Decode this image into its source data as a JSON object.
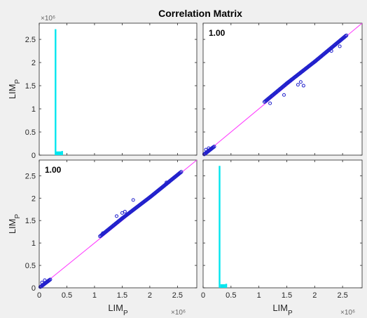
{
  "chart_data": {
    "type": "scatter",
    "title": "Correlation Matrix",
    "variable": "LIM",
    "variable_subscript": "P",
    "axis_range": [
      0,
      2.85
    ],
    "axis_exponent": "×10⁶",
    "ticks": [
      0,
      0.5,
      1,
      1.5,
      2,
      2.5
    ],
    "tick_labels": [
      "0",
      "0.5",
      "1",
      "1.5",
      "2",
      "2.5"
    ],
    "correlation_labels": [
      "1.00",
      "1.00"
    ],
    "histogram": {
      "bars": [
        {
          "x0": 0.28,
          "x1": 0.31,
          "count": 2.72
        },
        {
          "x0": 0.31,
          "x1": 0.4,
          "count": 0.08
        },
        {
          "x0": 0.4,
          "x1": 0.43,
          "count": 0.09
        }
      ]
    },
    "scatter_upper": {
      "trend": [
        [
          0.02,
          0.02
        ],
        [
          0.18,
          0.17
        ],
        [
          1.1,
          1.15
        ],
        [
          1.5,
          1.55
        ],
        [
          2.0,
          2.02
        ],
        [
          2.55,
          2.57
        ]
      ],
      "outliers": [
        [
          0.1,
          0.15
        ],
        [
          0.05,
          0.12
        ],
        [
          1.2,
          1.12
        ],
        [
          1.45,
          1.3
        ],
        [
          1.7,
          1.52
        ],
        [
          1.75,
          1.58
        ],
        [
          2.3,
          2.25
        ],
        [
          2.45,
          2.35
        ],
        [
          1.8,
          1.5
        ]
      ]
    },
    "scatter_lower": {
      "trend": [
        [
          0.02,
          0.02
        ],
        [
          0.18,
          0.17
        ],
        [
          1.1,
          1.15
        ],
        [
          1.5,
          1.55
        ],
        [
          2.0,
          2.02
        ],
        [
          2.55,
          2.57
        ]
      ],
      "outliers": [
        [
          0.1,
          0.17
        ],
        [
          0.05,
          0.12
        ],
        [
          1.15,
          1.22
        ],
        [
          1.4,
          1.6
        ],
        [
          1.5,
          1.67
        ],
        [
          1.7,
          1.96
        ],
        [
          1.55,
          1.7
        ],
        [
          2.3,
          2.35
        ]
      ]
    },
    "grid": false,
    "colors": {
      "background": "#f0f0f0",
      "axes": "#ffffff",
      "histogram": "#00e5ee",
      "points": "#2020cc",
      "reference_line": "#ff33ff",
      "axis_text": "#262626"
    }
  }
}
